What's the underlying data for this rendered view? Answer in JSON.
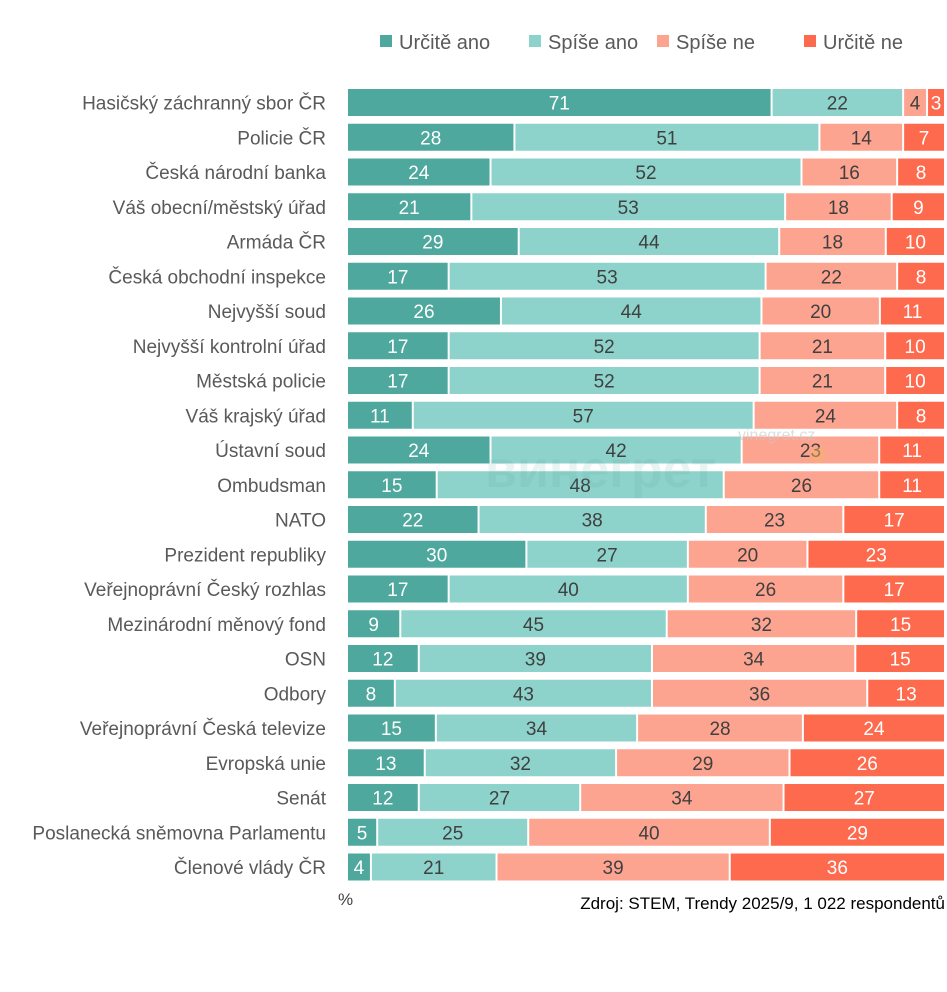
{
  "chart_data": {
    "type": "bar",
    "orientation": "horizontal",
    "stacked": "100%",
    "title": "",
    "xlabel": "%",
    "ylabel": "",
    "legend_position": "top-right",
    "grid": false,
    "series": [
      {
        "name": "Určitě ano",
        "color": "#4ea89d",
        "label_color": "#ffffff",
        "values": [
          71,
          28,
          24,
          21,
          29,
          17,
          26,
          17,
          17,
          11,
          24,
          15,
          22,
          30,
          17,
          9,
          12,
          8,
          15,
          13,
          12,
          5,
          4
        ]
      },
      {
        "name": "Spíše ano",
        "color": "#8dd3cb",
        "label_color": "#404040",
        "values": [
          22,
          51,
          52,
          53,
          44,
          53,
          44,
          52,
          52,
          57,
          42,
          48,
          38,
          27,
          40,
          45,
          39,
          43,
          34,
          32,
          27,
          25,
          21
        ]
      },
      {
        "name": "Spíše ne",
        "color": "#fda491",
        "label_color": "#404040",
        "values": [
          4,
          14,
          16,
          18,
          18,
          22,
          20,
          21,
          21,
          24,
          23,
          26,
          23,
          20,
          26,
          32,
          34,
          36,
          28,
          29,
          34,
          40,
          39
        ]
      },
      {
        "name": "Určitě ne",
        "color": "#fe6a4e",
        "label_color": "#ffffff",
        "values": [
          3,
          7,
          8,
          9,
          10,
          8,
          11,
          10,
          10,
          8,
          11,
          11,
          17,
          23,
          17,
          15,
          15,
          13,
          24,
          26,
          27,
          29,
          36
        ]
      }
    ],
    "categories": [
      "Hasičský záchranný sbor ČR",
      "Policie ČR",
      "Česká národní banka",
      "Váš obecní/městský úřad",
      "Armáda ČR",
      "Česká obchodní inspekce",
      "Nejvyšší soud",
      "Nejvyšší kontrolní úřad",
      "Městská policie",
      "Váš krajský úřad",
      "Ústavní soud",
      "Ombudsman",
      "NATO",
      "Prezident republiky",
      "Veřejnoprávní Český rozhlas",
      "Mezinárodní měnový fond",
      "OSN",
      "Odbory",
      "Veřejnoprávní Česká televize",
      "Evropská unie",
      "Senát",
      "Poslanecká sněmovna Parlamentu",
      "Členové vlády ČR"
    ],
    "unit_label": "%",
    "source": "Zdroj: STEM, Trendy 2025/9, 1 022 respondentů"
  },
  "watermark": {
    "main": "винегрет",
    "site": "vinegret.cz"
  }
}
